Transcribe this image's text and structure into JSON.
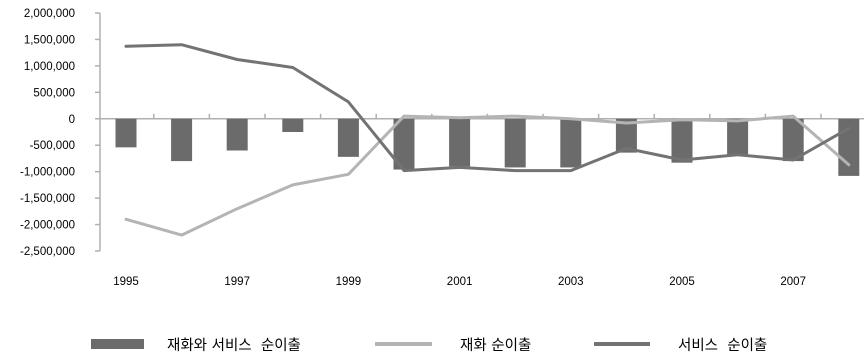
{
  "colors": {
    "bar": "#6b6b6b",
    "goods_line": "#b4b4b4",
    "services_line": "#737373",
    "axis": "#b0b0b0"
  },
  "chart_data": {
    "type": "bar",
    "title": "",
    "xlabel": "",
    "ylabel": "",
    "x": [
      1995,
      1996,
      1997,
      1998,
      1999,
      2000,
      2001,
      2002,
      2003,
      2004,
      2005,
      2006,
      2007,
      2008
    ],
    "x_tick_labels": [
      "1995",
      "1997",
      "1999",
      "2001",
      "2003",
      "2005",
      "2007"
    ],
    "y_tick_labels": [
      "2,000,000",
      "1,500,000",
      "1,000,000",
      "500,000",
      "0",
      "-500,000",
      "-1,000,000",
      "-1,500,000",
      "-2,000,000",
      "-2,500,000"
    ],
    "ylim": [
      -2500000,
      2000000
    ],
    "grid": false,
    "legend_position": "bottom",
    "series": [
      {
        "name": "재화와 서비스  순이출",
        "type": "bar",
        "color": "#6b6b6b",
        "values": [
          -540000,
          -800000,
          -600000,
          -250000,
          -720000,
          -960000,
          -900000,
          -920000,
          -920000,
          -640000,
          -830000,
          -700000,
          -800000,
          -1080000
        ]
      },
      {
        "name": "재화 순이출",
        "type": "line",
        "color": "#b4b4b4",
        "values": [
          -1900000,
          -2200000,
          -1700000,
          -1250000,
          -1050000,
          50000,
          20000,
          50000,
          0,
          -80000,
          -20000,
          -40000,
          50000,
          -870000
        ]
      },
      {
        "name": "서비스  순이출",
        "type": "line",
        "color": "#737373",
        "values": [
          1370000,
          1400000,
          1120000,
          970000,
          320000,
          -980000,
          -920000,
          -980000,
          -980000,
          -560000,
          -780000,
          -680000,
          -780000,
          -180000
        ]
      }
    ]
  }
}
